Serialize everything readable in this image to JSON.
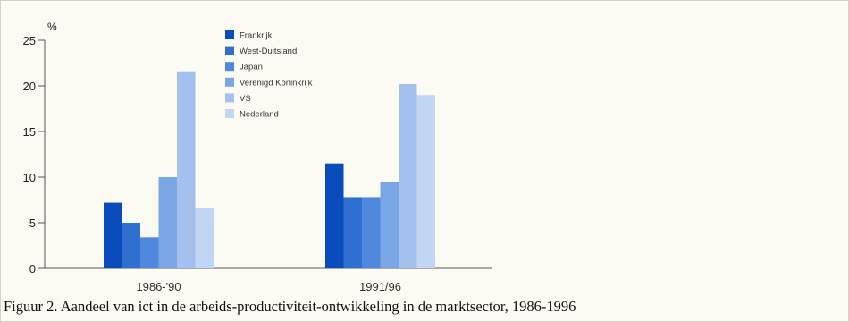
{
  "chart_data": {
    "type": "bar",
    "unit_label": "%",
    "categories": [
      "1986-'90",
      "1991/96"
    ],
    "series": [
      {
        "name": "Frankrijk",
        "color": "#0b4cbc",
        "values": [
          7.2,
          11.5
        ]
      },
      {
        "name": "West-Duitsland",
        "color": "#2f6fd0",
        "values": [
          5.0,
          7.8
        ]
      },
      {
        "name": "Japan",
        "color": "#4f88dc",
        "values": [
          3.4,
          7.8
        ]
      },
      {
        "name": "Verenigd Koninkrijk",
        "color": "#7ba6e6",
        "values": [
          10.0,
          9.5
        ]
      },
      {
        "name": "VS",
        "color": "#a3c0ee",
        "values": [
          21.6,
          20.2
        ]
      },
      {
        "name": "Nederland",
        "color": "#c2d6f4",
        "values": [
          6.6,
          19.0
        ]
      }
    ],
    "ylim": [
      0,
      25
    ],
    "yticks": [
      0,
      5,
      10,
      15,
      20,
      25
    ],
    "grid": false,
    "legend_position": "top-center"
  },
  "caption": "Figuur 2. Aandeel van ict in de arbeids-productiviteit-ontwikkeling in de marktsector, 1986-1996"
}
